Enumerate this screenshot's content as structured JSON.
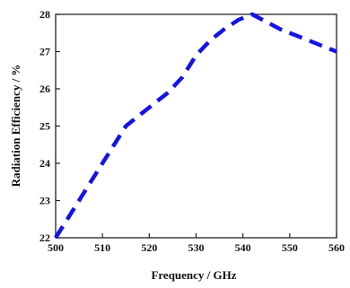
{
  "chart_data": {
    "type": "line",
    "title": "",
    "xlabel": "Frequency / GHz",
    "ylabel": "Radiation Efficiency / %",
    "xlim": [
      500,
      560
    ],
    "ylim": [
      22,
      28
    ],
    "x_ticks": [
      "500",
      "510",
      "520",
      "530",
      "540",
      "550",
      "560"
    ],
    "y_ticks": [
      "22",
      "23",
      "24",
      "25",
      "26",
      "27",
      "28"
    ],
    "grid": false,
    "legend": "none",
    "line_style": "dashed",
    "series": [
      {
        "color": "#1414e6",
        "x": [
          500,
          503,
          506,
          509,
          512,
          515,
          518,
          521,
          524,
          527,
          530,
          533,
          536,
          539,
          542,
          545,
          548,
          551,
          554,
          557,
          560
        ],
        "y": [
          22.0,
          22.6,
          23.2,
          23.8,
          24.4,
          25.0,
          25.3,
          25.6,
          25.9,
          26.3,
          26.9,
          27.3,
          27.6,
          27.85,
          28.0,
          27.8,
          27.6,
          27.45,
          27.3,
          27.15,
          27.0
        ]
      }
    ]
  }
}
